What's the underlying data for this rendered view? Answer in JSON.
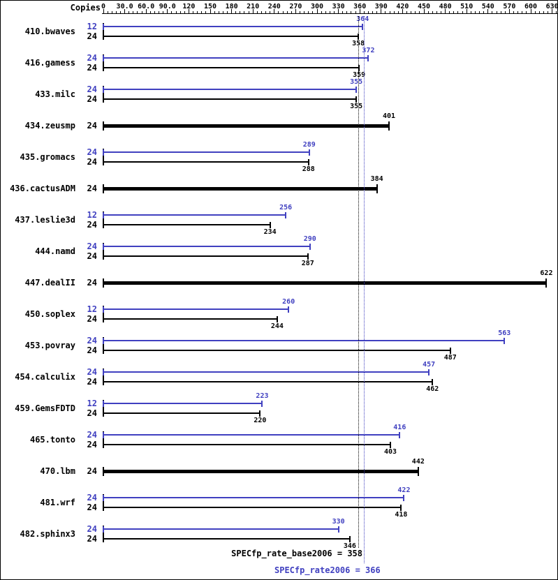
{
  "chart_data": {
    "type": "bar",
    "orientation": "horizontal",
    "copies_header": "Copies",
    "x_axis": {
      "min": 0,
      "max": 630,
      "major_tick_interval": 30,
      "minor_tick_interval": 6,
      "tick_labels": [
        "0",
        "30.0",
        "60.0",
        "90.0",
        "120",
        "150",
        "180",
        "210",
        "240",
        "270",
        "300",
        "330",
        "360",
        "390",
        "420",
        "450",
        "480",
        "510",
        "540",
        "570",
        "600",
        "630"
      ]
    },
    "series_colors": {
      "peak": "#4040c0",
      "base": "#000000"
    },
    "benchmarks": [
      {
        "name": "410.bwaves",
        "bars": [
          {
            "series": "peak",
            "copies": 12,
            "value": 364
          },
          {
            "series": "base",
            "copies": 24,
            "value": 358
          }
        ]
      },
      {
        "name": "416.gamess",
        "bars": [
          {
            "series": "peak",
            "copies": 24,
            "value": 372
          },
          {
            "series": "base",
            "copies": 24,
            "value": 359
          }
        ]
      },
      {
        "name": "433.milc",
        "bars": [
          {
            "series": "peak",
            "copies": 24,
            "value": 355
          },
          {
            "series": "base",
            "copies": 24,
            "value": 355
          }
        ]
      },
      {
        "name": "434.zeusmp",
        "bars": [
          {
            "series": "base",
            "copies": 24,
            "value": 401
          }
        ]
      },
      {
        "name": "435.gromacs",
        "bars": [
          {
            "series": "peak",
            "copies": 24,
            "value": 289
          },
          {
            "series": "base",
            "copies": 24,
            "value": 288
          }
        ]
      },
      {
        "name": "436.cactusADM",
        "bars": [
          {
            "series": "base",
            "copies": 24,
            "value": 384
          }
        ]
      },
      {
        "name": "437.leslie3d",
        "bars": [
          {
            "series": "peak",
            "copies": 12,
            "value": 256
          },
          {
            "series": "base",
            "copies": 24,
            "value": 234
          }
        ]
      },
      {
        "name": "444.namd",
        "bars": [
          {
            "series": "peak",
            "copies": 24,
            "value": 290
          },
          {
            "series": "base",
            "copies": 24,
            "value": 287
          }
        ]
      },
      {
        "name": "447.dealII",
        "bars": [
          {
            "series": "base",
            "copies": 24,
            "value": 622
          }
        ]
      },
      {
        "name": "450.soplex",
        "bars": [
          {
            "series": "peak",
            "copies": 12,
            "value": 260
          },
          {
            "series": "base",
            "copies": 24,
            "value": 244
          }
        ]
      },
      {
        "name": "453.povray",
        "bars": [
          {
            "series": "peak",
            "copies": 24,
            "value": 563
          },
          {
            "series": "base",
            "copies": 24,
            "value": 487
          }
        ]
      },
      {
        "name": "454.calculix",
        "bars": [
          {
            "series": "peak",
            "copies": 24,
            "value": 457
          },
          {
            "series": "base",
            "copies": 24,
            "value": 462
          }
        ]
      },
      {
        "name": "459.GemsFDTD",
        "bars": [
          {
            "series": "peak",
            "copies": 12,
            "value": 223
          },
          {
            "series": "base",
            "copies": 24,
            "value": 220
          }
        ]
      },
      {
        "name": "465.tonto",
        "bars": [
          {
            "series": "peak",
            "copies": 24,
            "value": 416
          },
          {
            "series": "base",
            "copies": 24,
            "value": 403
          }
        ]
      },
      {
        "name": "470.lbm",
        "bars": [
          {
            "series": "base",
            "copies": 24,
            "value": 442
          }
        ]
      },
      {
        "name": "481.wrf",
        "bars": [
          {
            "series": "peak",
            "copies": 24,
            "value": 422
          },
          {
            "series": "base",
            "copies": 24,
            "value": 418
          }
        ]
      },
      {
        "name": "482.sphinx3",
        "bars": [
          {
            "series": "peak",
            "copies": 24,
            "value": 330
          },
          {
            "series": "base",
            "copies": 24,
            "value": 346
          }
        ]
      }
    ],
    "reference_lines": [
      {
        "label": "SPECfp_rate_base2006",
        "value": 358,
        "color": "#000000"
      },
      {
        "label": "SPECfp_rate2006",
        "value": 366,
        "color": "#4040c0"
      }
    ],
    "footer": {
      "base_text": "SPECfp_rate_base2006 = 358",
      "peak_text": "SPECfp_rate2006 = 366"
    }
  }
}
